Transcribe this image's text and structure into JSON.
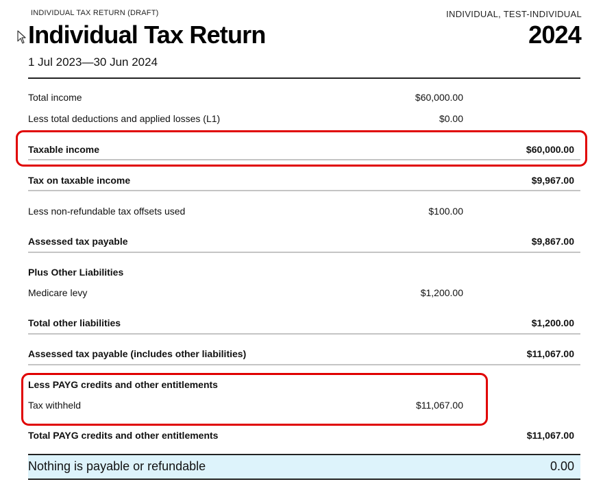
{
  "header": {
    "draft_label": "INDIVIDUAL TAX RETURN (DRAFT)",
    "taxpayer_name": "INDIVIDUAL, TEST-INDIVIDUAL",
    "title": "Individual Tax Return",
    "year": "2024",
    "period": "1 Jul 2023—30 Jun 2024"
  },
  "rows": {
    "total_income": {
      "label": "Total income",
      "value": "$60,000.00"
    },
    "deductions": {
      "label": "Less total deductions and applied losses (L1)",
      "value": "$0.00"
    },
    "taxable_income": {
      "label": "Taxable income",
      "value": "$60,000.00"
    },
    "tax_on_taxable": {
      "label": "Tax on taxable income",
      "value": "$9,967.00"
    },
    "offsets": {
      "label": "Less non-refundable tax offsets used",
      "value": "$100.00"
    },
    "assessed_tax": {
      "label": "Assessed tax payable",
      "value": "$9,867.00"
    },
    "other_liabilities_heading": {
      "label": "Plus Other Liabilities"
    },
    "medicare_levy": {
      "label": "Medicare levy",
      "value": "$1,200.00"
    },
    "total_other_liabilities": {
      "label": "Total other liabilities",
      "value": "$1,200.00"
    },
    "assessed_tax_incl": {
      "label": "Assessed tax payable (includes other liabilities)",
      "value": "$11,067.00"
    },
    "payg_heading": {
      "label": "Less PAYG credits and other entitlements"
    },
    "tax_withheld": {
      "label": "Tax withheld",
      "value": "$11,067.00"
    },
    "total_payg": {
      "label": "Total PAYG credits and other entitlements",
      "value": "$11,067.00"
    }
  },
  "result": {
    "label": "Nothing is payable or refundable",
    "value": "0.00"
  },
  "colors": {
    "highlight": "#e00000",
    "result_background": "#ddf3fb"
  }
}
